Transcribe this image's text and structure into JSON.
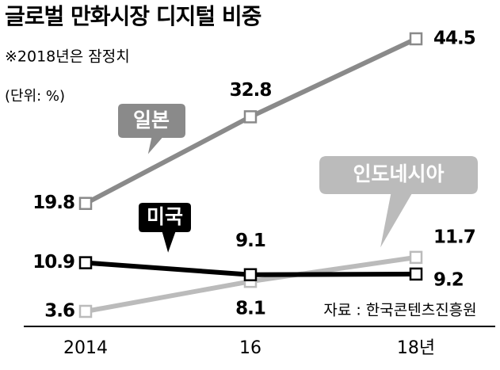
{
  "chart_data": {
    "type": "line",
    "title": "글로벌 만화시장 디지털 비중",
    "subtitle": "※2018년은 잠정치",
    "unit": "(단위: %)",
    "source": "자료 : 한국콘텐츠진흥원",
    "categories": [
      "2014",
      "16",
      "18년"
    ],
    "series": [
      {
        "name": "인도네시아",
        "color": "#bbbbbb",
        "values": [
          3.6,
          8.1,
          11.7
        ]
      },
      {
        "name": "일본",
        "color": "#8a8a8a",
        "values": [
          19.8,
          32.8,
          44.5
        ]
      },
      {
        "name": "미국",
        "color": "#000000",
        "values": [
          10.9,
          9.1,
          9.2
        ]
      }
    ]
  }
}
